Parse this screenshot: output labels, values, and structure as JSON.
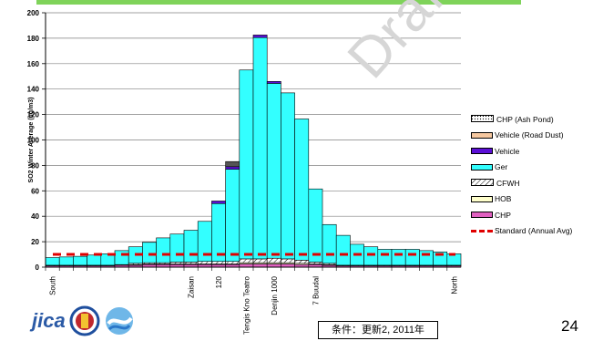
{
  "slide": {
    "watermark": "Draft",
    "caption": "条件：更新2, 2011年",
    "page_number": "24",
    "logo_text": "jica"
  },
  "colors": {
    "chp_ash": "#ffffff",
    "vehicle_dust": "#f6c8a0",
    "vehicle": "#5b0fd6",
    "ger": "#33ffff",
    "cfwh": "#ffffff",
    "hob": "#ffffcc",
    "chp": "#e060c0",
    "standard": "#e00000",
    "accent_bar": "#7fd35a"
  },
  "chart_data": {
    "type": "bar",
    "stacked": true,
    "ylabel": "SO2  Winter Average (ug/m3)",
    "xlabel": "",
    "ylim": [
      0,
      200
    ],
    "yticks": [
      0,
      20,
      40,
      60,
      80,
      100,
      120,
      140,
      160,
      180,
      200
    ],
    "grid": true,
    "legend_position": "right",
    "categories": [
      "South",
      "",
      "",
      "",
      "",
      "",
      "",
      "",
      "",
      "",
      "Zaisan",
      "",
      "120",
      "",
      "Tengis Kno Teatro",
      "",
      "Denjin 1000",
      "",
      "",
      "7 Buudal",
      "",
      "",
      "",
      "",
      "",
      "",
      "",
      "",
      "",
      "North"
    ],
    "x_tick_labels": [
      "South",
      "Zaisan",
      "120",
      "Tengis Kno Teatro",
      "Denjin 1000",
      "7 Buudal",
      "North"
    ],
    "series": [
      {
        "name": "CHP",
        "color_key": "chp",
        "values": [
          1,
          1,
          1,
          1,
          1,
          1.5,
          1.5,
          2,
          2,
          2,
          2,
          2,
          2,
          2,
          2.5,
          2.5,
          2.5,
          2.5,
          2,
          2,
          1.5,
          1,
          1,
          1,
          1,
          1,
          1,
          1,
          1,
          1
        ]
      },
      {
        "name": "HOB",
        "color_key": "hob",
        "values": [
          0,
          0,
          0,
          0,
          0,
          0,
          0.5,
          0.5,
          0.5,
          0.5,
          0.5,
          0.5,
          0.5,
          0.5,
          1,
          1,
          1,
          1,
          1,
          0.5,
          0.5,
          0,
          0,
          0,
          0,
          0,
          0,
          0,
          0,
          0
        ]
      },
      {
        "name": "CFWH",
        "color_key": "cfwh",
        "values": [
          0.5,
          0.5,
          0.5,
          0.5,
          0.5,
          0.5,
          1,
          1,
          1,
          1.5,
          1.5,
          2,
          2,
          2,
          3,
          3,
          3.5,
          3,
          2.5,
          1.5,
          1,
          0.5,
          0.5,
          0.5,
          0.5,
          0.5,
          0.5,
          0.5,
          0.5,
          0.5
        ]
      },
      {
        "name": "Ger",
        "color_key": "ger",
        "values": [
          6,
          6.5,
          7,
          8,
          9,
          11,
          13,
          16,
          19.5,
          22,
          25,
          31.5,
          45.5,
          72.5,
          148.5,
          174,
          137.5,
          130.5,
          111,
          57.5,
          30.5,
          23.5,
          16.5,
          14.5,
          12.5,
          12.5,
          12.5,
          11.5,
          10.5,
          9
        ]
      },
      {
        "name": "Vehicle",
        "color_key": "vehicle",
        "values": [
          0,
          0,
          0,
          0,
          0,
          0,
          0,
          0,
          0,
          0,
          0,
          0,
          2,
          2,
          0,
          2,
          1.5,
          0,
          0,
          0,
          0,
          0,
          0,
          0,
          0,
          0,
          0,
          0,
          0,
          0
        ]
      },
      {
        "name": "Vehicle (Road Dust)",
        "color_key": "vehicle_dust",
        "values": [
          0,
          0,
          0,
          0,
          0,
          0,
          0,
          0,
          0,
          0,
          0,
          0,
          0,
          0,
          0,
          0,
          0,
          0,
          0,
          0,
          0,
          0,
          0,
          0,
          0,
          0,
          0,
          0,
          0,
          0
        ]
      },
      {
        "name": "CHP (Ash Pond)",
        "color_key": "chp_ash",
        "values": [
          0,
          0,
          0,
          0,
          0,
          0,
          0,
          0,
          0,
          0,
          0,
          0,
          0,
          0,
          0,
          0,
          0,
          0,
          0,
          0,
          0,
          0,
          0,
          0,
          0,
          0,
          0,
          0,
          0,
          0
        ]
      }
    ],
    "dark_tops": [
      0,
      0,
      0,
      0,
      0,
      0,
      0,
      0,
      0,
      0,
      0,
      0,
      0,
      4,
      0,
      0,
      0,
      0,
      0,
      0,
      0,
      0,
      0,
      0,
      0,
      0,
      0,
      0,
      0,
      0
    ],
    "standard": {
      "name": "Standard (Annual Avg)",
      "value": 10
    },
    "legend": [
      "CHP (Ash Pond)",
      "Vehicle (Road Dust)",
      "Vehicle",
      "Ger",
      "CFWH",
      "HOB",
      "CHP",
      "Standard (Annual Avg)"
    ]
  }
}
